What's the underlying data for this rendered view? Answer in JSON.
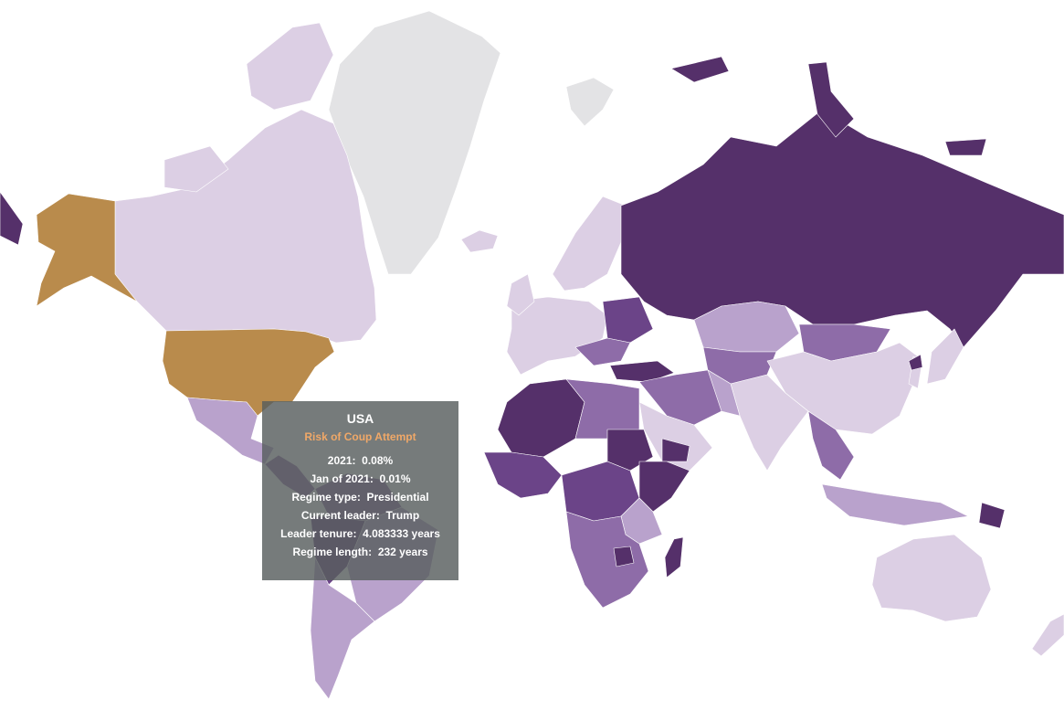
{
  "tooltip": {
    "country": "USA",
    "subtitle": "Risk of Coup Attempt",
    "subtitle_color": "#f0a868",
    "rows": [
      {
        "label": "2021",
        "value": "0.08%"
      },
      {
        "label": "Jan of 2021",
        "value": "0.01%"
      },
      {
        "label": "Regime type",
        "value": "Presidential"
      },
      {
        "label": "Current leader",
        "value": "Trump"
      },
      {
        "label": "Leader tenure",
        "value": "4.083333 years"
      },
      {
        "label": "Regime length",
        "value": "232 years"
      }
    ]
  },
  "colors": {
    "highlight": "#b98b4c",
    "no_data": "#e3e3e5",
    "very_low": "#dccfe4",
    "low": "#b9a2cc",
    "medium": "#8e6ca8",
    "high": "#6b4488",
    "very_high": "#55306a"
  }
}
